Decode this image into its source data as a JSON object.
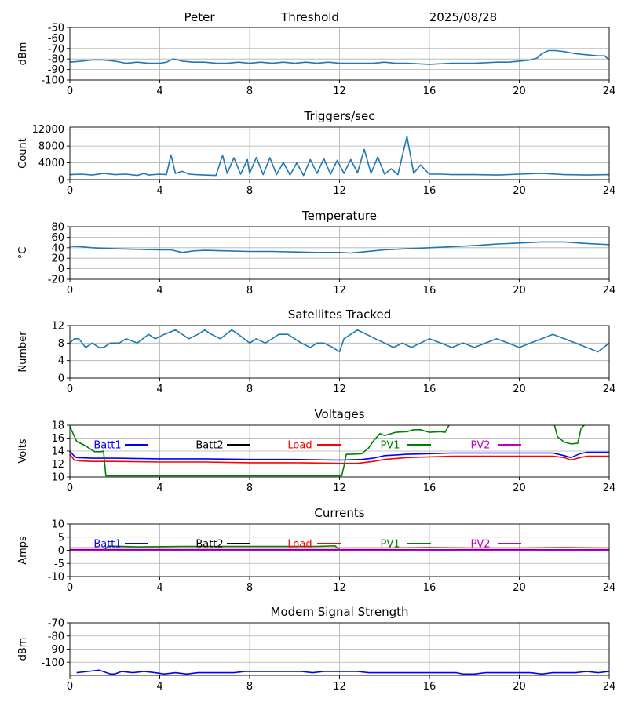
{
  "header": {
    "left": "Peter",
    "center": "Threshold",
    "right": "2025/08/28"
  },
  "colors": {
    "blue": "#1f77b4",
    "grid": "#b0b0b0",
    "batt1": "#0000ff",
    "batt2": "#000000",
    "load": "#ff0000",
    "pv1": "#008000",
    "pv2": "#bf00bf"
  },
  "chart_data": [
    {
      "type": "line",
      "title": "",
      "ylabel": "dBm",
      "xlim": [
        0,
        24
      ],
      "ylim": [
        -100,
        -50
      ],
      "xticks": [
        "0",
        "4",
        "8",
        "12",
        "16",
        "20",
        "24"
      ],
      "yticks": [
        "-50",
        "-60",
        "-70",
        "-80",
        "-90",
        "-100"
      ],
      "ytick_values": [
        -50,
        -60,
        -70,
        -80,
        -90,
        -100
      ],
      "grid": true,
      "series": [
        {
          "color": "#1f77b4",
          "x": [
            0,
            0.5,
            1,
            1.5,
            2,
            2.5,
            3,
            3.5,
            4,
            4.3,
            4.6,
            5,
            5.5,
            6,
            6.5,
            7,
            7.5,
            8,
            8.5,
            9,
            9.5,
            10,
            10.5,
            11,
            11.5,
            12,
            12.5,
            13,
            13.5,
            14,
            14.5,
            15,
            16,
            17,
            18,
            19,
            19.5,
            20,
            20.5,
            20.8,
            21,
            21.3,
            21.6,
            22,
            22.5,
            23,
            23.5,
            23.8,
            24
          ],
          "y": [
            -83,
            -82,
            -81,
            -81,
            -82,
            -84,
            -83,
            -84,
            -84,
            -83,
            -80,
            -82,
            -83,
            -83,
            -84,
            -84,
            -83,
            -84,
            -83,
            -84,
            -83,
            -84,
            -83,
            -84,
            -83,
            -84,
            -84,
            -84,
            -84,
            -83,
            -84,
            -84,
            -85,
            -84,
            -84,
            -83,
            -83,
            -82,
            -81,
            -79,
            -75,
            -72,
            -72,
            -73,
            -75,
            -76,
            -77,
            -77,
            -81
          ]
        }
      ]
    },
    {
      "type": "line",
      "title": "Triggers/sec",
      "ylabel": "Count",
      "xlim": [
        0,
        24
      ],
      "ylim": [
        0,
        12500
      ],
      "xticks": [
        "0",
        "4",
        "8",
        "12",
        "16",
        "20",
        "24"
      ],
      "yticks": [
        "0",
        "4000",
        "8000",
        "12000"
      ],
      "ytick_values": [
        0,
        4000,
        8000,
        12000
      ],
      "grid": true,
      "series": [
        {
          "color": "#1f77b4",
          "x": [
            0,
            0.5,
            1,
            1.5,
            2,
            2.5,
            3,
            3.3,
            3.5,
            4,
            4.3,
            4.5,
            4.7,
            5,
            5.3,
            5.6,
            6,
            6.5,
            6.8,
            7,
            7.3,
            7.6,
            7.9,
            8,
            8.3,
            8.6,
            8.9,
            9.2,
            9.5,
            9.8,
            10.1,
            10.4,
            10.7,
            11,
            11.3,
            11.6,
            11.9,
            12.2,
            12.5,
            12.8,
            13.1,
            13.4,
            13.7,
            14,
            14.3,
            14.6,
            15,
            15.3,
            15.6,
            16,
            16.5,
            17,
            18,
            19,
            20,
            21,
            22,
            23,
            24
          ],
          "y": [
            1200,
            1300,
            1100,
            1500,
            1200,
            1300,
            1000,
            1500,
            1100,
            1300,
            1200,
            5900,
            1500,
            2000,
            1300,
            1200,
            1100,
            1000,
            5800,
            1500,
            5200,
            1300,
            4800,
            1500,
            5300,
            1200,
            5200,
            1200,
            4100,
            1100,
            4000,
            1000,
            4800,
            1500,
            5000,
            1300,
            4600,
            1500,
            4800,
            1600,
            7200,
            1500,
            5400,
            1300,
            2600,
            1200,
            10300,
            1500,
            3500,
            1300,
            1300,
            1200,
            1200,
            1100,
            1300,
            1500,
            1200,
            1100,
            1200
          ]
        }
      ]
    },
    {
      "type": "line",
      "title": "Temperature",
      "ylabel": "°C",
      "xlim": [
        0,
        24
      ],
      "ylim": [
        -20,
        80
      ],
      "xticks": [
        "0",
        "4",
        "8",
        "12",
        "16",
        "20",
        "24"
      ],
      "yticks": [
        "80",
        "60",
        "40",
        "20",
        "0",
        "-20"
      ],
      "ytick_values": [
        80,
        60,
        40,
        20,
        0,
        -20
      ],
      "grid": true,
      "series": [
        {
          "color": "#1f77b4",
          "x": [
            0,
            0.5,
            1,
            2,
            3,
            4,
            4.5,
            5,
            5.5,
            6,
            7,
            8,
            9,
            10,
            11,
            12,
            12.5,
            13,
            13.5,
            14,
            15,
            16,
            17,
            18,
            19,
            20,
            21,
            22,
            23,
            24
          ],
          "y": [
            43,
            42,
            40,
            38,
            37,
            36,
            36,
            31,
            34,
            35,
            34,
            33,
            33,
            32,
            31,
            31,
            30,
            32,
            34,
            36,
            38,
            40,
            42,
            44,
            47,
            49,
            51,
            51,
            48,
            46
          ]
        }
      ]
    },
    {
      "type": "line",
      "title": "Satellites Tracked",
      "ylabel": "Number",
      "xlim": [
        0,
        24
      ],
      "ylim": [
        0,
        12
      ],
      "xticks": [
        "0",
        "4",
        "8",
        "12",
        "16",
        "20",
        "24"
      ],
      "yticks": [
        "0",
        "4",
        "8",
        "12"
      ],
      "ytick_values": [
        0,
        4,
        8,
        12
      ],
      "grid": true,
      "series": [
        {
          "color": "#1f77b4",
          "x": [
            0,
            0.2,
            0.4,
            0.7,
            1,
            1.3,
            1.5,
            1.8,
            2.2,
            2.5,
            3,
            3.5,
            3.8,
            4.2,
            4.7,
            5,
            5.3,
            5.7,
            6,
            6.3,
            6.7,
            7.2,
            7.5,
            8,
            8.3,
            8.7,
            9,
            9.3,
            9.7,
            10,
            10.3,
            10.7,
            11,
            11.3,
            11.7,
            12,
            12.2,
            12.5,
            12.8,
            13.2,
            13.6,
            14,
            14.4,
            14.8,
            15.2,
            15.6,
            16,
            16.5,
            17,
            17.5,
            18,
            18.5,
            19,
            19.5,
            20,
            20.5,
            21,
            21.5,
            22,
            22.5,
            23,
            23.5,
            24
          ],
          "y": [
            8,
            9,
            9,
            7,
            8,
            7,
            7,
            8,
            8,
            9,
            8,
            10,
            9,
            10,
            11,
            10,
            9,
            10,
            11,
            10,
            9,
            11,
            10,
            8,
            9,
            8,
            9,
            10,
            10,
            9,
            8,
            7,
            8,
            8,
            7,
            6,
            9,
            10,
            11,
            10,
            9,
            8,
            7,
            8,
            7,
            8,
            9,
            8,
            7,
            8,
            7,
            8,
            9,
            8,
            7,
            8,
            9,
            10,
            9,
            8,
            7,
            6,
            8
          ]
        }
      ]
    },
    {
      "type": "line",
      "title": "Voltages",
      "ylabel": "Volts",
      "xlim": [
        0,
        24
      ],
      "ylim": [
        10,
        18
      ],
      "xticks": [
        "0",
        "4",
        "8",
        "12",
        "16",
        "20",
        "24"
      ],
      "yticks": [
        "10",
        "12",
        "14",
        "16",
        "18"
      ],
      "ytick_values": [
        10,
        12,
        14,
        16,
        18
      ],
      "grid": true,
      "legend": [
        "Batt1",
        "Batt2",
        "Load",
        "PV1",
        "PV2"
      ],
      "series": [
        {
          "name": "Batt1",
          "color": "#0000ff",
          "x": [
            0,
            0.2,
            0.3,
            1,
            2,
            4,
            6,
            8,
            10,
            12,
            13,
            13.5,
            14,
            15,
            16,
            17,
            18,
            19,
            20,
            21,
            21.5,
            22,
            22.3,
            22.7,
            23,
            23.5,
            24
          ],
          "y": [
            14,
            13.2,
            13,
            12.9,
            12.9,
            12.8,
            12.8,
            12.7,
            12.7,
            12.6,
            12.7,
            12.9,
            13.3,
            13.5,
            13.6,
            13.7,
            13.7,
            13.7,
            13.7,
            13.7,
            13.7,
            13.3,
            13,
            13.6,
            13.8,
            13.8,
            13.8
          ]
        },
        {
          "name": "Batt2",
          "color": "#000000",
          "x": [],
          "y": []
        },
        {
          "name": "Load",
          "color": "#ff0000",
          "x": [
            0,
            0.2,
            0.4,
            1,
            2,
            4,
            6,
            8,
            10,
            12,
            12.8,
            13.5,
            14,
            15,
            16,
            17,
            18,
            19,
            20,
            21,
            21.5,
            22,
            22.3,
            22.7,
            23,
            23.5,
            24
          ],
          "y": [
            13.5,
            12.6,
            12.5,
            12.4,
            12.4,
            12.3,
            12.3,
            12.2,
            12.2,
            12.1,
            12.1,
            12.4,
            12.7,
            13,
            13.1,
            13.2,
            13.2,
            13.2,
            13.2,
            13.2,
            13.2,
            13,
            12.6,
            13,
            13.2,
            13.2,
            13.2
          ]
        },
        {
          "name": "PV1",
          "color": "#008000",
          "x": [
            0,
            0.3,
            0.7,
            1.1,
            1.2,
            1.4,
            1.5,
            1.6,
            12.1,
            12.2,
            12.3,
            12.5,
            13,
            13.3,
            13.5,
            13.8,
            14,
            14.5,
            15,
            15.3,
            15.6,
            16,
            16.5,
            16.7,
            16.9,
            21.55,
            21.7,
            22,
            22.3,
            22.6,
            22.75,
            22.95
          ],
          "y": [
            17.8,
            15.5,
            14.8,
            13.9,
            13.9,
            13.9,
            14,
            10.2,
            10.2,
            11.7,
            13.5,
            13.5,
            13.6,
            14.5,
            15.5,
            16.7,
            16.4,
            16.9,
            17,
            17.3,
            17.3,
            16.9,
            17,
            16.9,
            18.2,
            18.2,
            16.2,
            15.4,
            15.1,
            15.2,
            17.5,
            18.2
          ]
        },
        {
          "name": "PV2",
          "color": "#bf00bf",
          "x": [],
          "y": []
        }
      ]
    },
    {
      "type": "line",
      "title": "Currents",
      "ylabel": "Amps",
      "xlim": [
        0,
        24
      ],
      "ylim": [
        -10,
        10
      ],
      "xticks": [
        "0",
        "4",
        "8",
        "12",
        "16",
        "20",
        "24"
      ],
      "yticks": [
        "10",
        "5",
        "0",
        "-5",
        "-10"
      ],
      "ytick_values": [
        10,
        5,
        0,
        -5,
        -10
      ],
      "grid": true,
      "legend": [
        "Batt1",
        "Batt2",
        "Load",
        "PV1",
        "PV2"
      ],
      "series": [
        {
          "name": "Batt1",
          "color": "#0000ff",
          "x": [
            0,
            24
          ],
          "y": [
            0.2,
            0.2
          ]
        },
        {
          "name": "Batt2",
          "color": "#000000",
          "x": [],
          "y": []
        },
        {
          "name": "Load",
          "color": "#ff0000",
          "x": [
            0,
            2,
            4,
            6,
            8,
            10,
            12,
            14,
            16,
            18,
            20,
            22,
            24
          ],
          "y": [
            0.9,
            0.9,
            0.9,
            0.9,
            0.9,
            0.9,
            0.9,
            0.9,
            1.0,
            0.9,
            0.9,
            1.0,
            0.9
          ]
        },
        {
          "name": "PV1",
          "color": "#008000",
          "x": [
            1.55,
            1.7,
            3,
            5,
            7,
            9,
            11,
            11.8,
            12.0
          ],
          "y": [
            0.2,
            1.6,
            1.3,
            1.5,
            1.5,
            1.5,
            1.5,
            1.7,
            0.2
          ]
        },
        {
          "name": "PV2",
          "color": "#bf00bf",
          "x": [
            0,
            24
          ],
          "y": [
            0.05,
            0.05
          ]
        }
      ]
    },
    {
      "type": "line",
      "title": "Modem Signal Strength",
      "ylabel": "dBm",
      "xlim": [
        0,
        24
      ],
      "ylim": [
        -110,
        -70
      ],
      "xticks": [
        "0",
        "4",
        "8",
        "12",
        "16",
        "20",
        "24"
      ],
      "yticks": [
        "-70",
        "-80",
        "-90",
        "-100"
      ],
      "ytick_values": [
        -70,
        -80,
        -90,
        -100
      ],
      "grid": true,
      "series": [
        {
          "color": "#0000ff",
          "x": [
            0.3,
            0.8,
            1.3,
            1.8,
            2,
            2.3,
            2.8,
            3.3,
            3.8,
            4.2,
            4.7,
            5.2,
            5.7,
            6.5,
            7.3,
            7.8,
            8.5,
            9.5,
            10.3,
            10.8,
            11.3,
            12,
            12.8,
            13.3,
            14,
            15,
            16,
            16.7,
            17.2,
            17.5,
            18,
            18.5,
            19.5,
            20.5,
            21,
            21.5,
            22.5,
            23,
            23.5,
            24
          ],
          "y": [
            -108,
            -107,
            -106,
            -109,
            -109,
            -107,
            -108,
            -107,
            -108,
            -109,
            -108,
            -109,
            -108,
            -108,
            -108,
            -107,
            -107,
            -107,
            -107,
            -108,
            -107,
            -107,
            -107,
            -108,
            -108,
            -108,
            -108,
            -108,
            -108,
            -109,
            -109,
            -108,
            -108,
            -108,
            -109,
            -108,
            -108,
            -107,
            -108,
            -107
          ]
        }
      ]
    }
  ]
}
